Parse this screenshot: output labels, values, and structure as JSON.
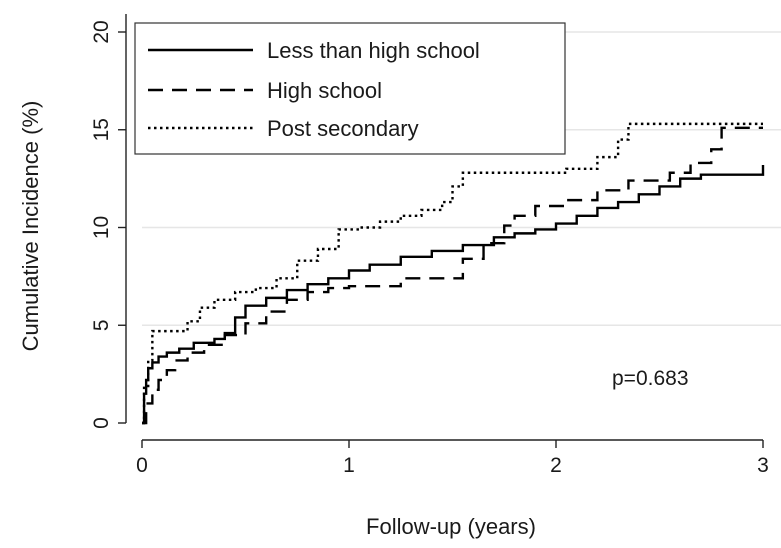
{
  "chart_data": {
    "type": "line",
    "title": "",
    "xlabel": "Follow-up (years)",
    "ylabel": "Cumulative Incidence (%)",
    "xlim": [
      0,
      3
    ],
    "ylim": [
      0,
      20
    ],
    "xticks": [
      0,
      1,
      2,
      3
    ],
    "yticks": [
      0,
      5,
      10,
      15,
      20
    ],
    "xtick_labels": [
      "0",
      "1",
      "2",
      "3"
    ],
    "ytick_labels": [
      "0",
      "5",
      "10",
      "15",
      "20"
    ],
    "grid": "horizontal",
    "legend": "top-left",
    "annotation": "p=0.683",
    "series": [
      {
        "name": "Less than high school",
        "style": "solid",
        "color": "#000000",
        "x": [
          0,
          0.01,
          0.02,
          0.03,
          0.05,
          0.08,
          0.12,
          0.18,
          0.25,
          0.35,
          0.4,
          0.45,
          0.5,
          0.6,
          0.7,
          0.8,
          0.9,
          1.0,
          1.1,
          1.25,
          1.4,
          1.55,
          1.7,
          1.8,
          1.9,
          2.0,
          2.1,
          2.2,
          2.3,
          2.4,
          2.5,
          2.6,
          2.7,
          3.0
        ],
        "y": [
          0,
          1.5,
          2.2,
          2.8,
          3.1,
          3.4,
          3.6,
          3.8,
          4.1,
          4.3,
          4.6,
          5.4,
          6.0,
          6.4,
          6.8,
          7.1,
          7.4,
          7.8,
          8.1,
          8.5,
          8.8,
          9.1,
          9.5,
          9.7,
          9.9,
          10.2,
          10.6,
          11.0,
          11.3,
          11.7,
          12.1,
          12.5,
          12.7,
          13.2
        ]
      },
      {
        "name": "High school",
        "style": "dashed",
        "color": "#000000",
        "x": [
          0,
          0.02,
          0.05,
          0.08,
          0.12,
          0.16,
          0.22,
          0.3,
          0.4,
          0.5,
          0.6,
          0.7,
          0.8,
          0.9,
          1.0,
          1.25,
          1.5,
          1.55,
          1.65,
          1.75,
          1.8,
          1.9,
          2.05,
          2.2,
          2.35,
          2.55,
          2.65,
          2.75,
          2.8,
          3.0
        ],
        "y": [
          0,
          1.0,
          1.7,
          2.2,
          2.7,
          3.2,
          3.6,
          4.0,
          4.5,
          5.1,
          5.7,
          6.3,
          6.7,
          6.9,
          7.0,
          7.4,
          7.4,
          8.4,
          9.2,
          10.1,
          10.6,
          11.1,
          11.4,
          11.9,
          12.4,
          12.8,
          13.3,
          14.0,
          15.1,
          15.1
        ]
      },
      {
        "name": "Post secondary",
        "style": "dotted",
        "color": "#000000",
        "x": [
          0,
          0.01,
          0.03,
          0.05,
          0.15,
          0.22,
          0.28,
          0.35,
          0.45,
          0.55,
          0.65,
          0.75,
          0.85,
          0.95,
          1.05,
          1.15,
          1.25,
          1.35,
          1.45,
          1.5,
          1.55,
          1.7,
          1.9,
          2.05,
          2.2,
          2.3,
          2.35,
          2.45,
          2.6,
          3.0
        ],
        "y": [
          0,
          1.8,
          3.2,
          4.7,
          4.7,
          5.2,
          5.9,
          6.3,
          6.7,
          6.9,
          7.4,
          8.3,
          8.9,
          9.9,
          10.0,
          10.3,
          10.6,
          10.9,
          11.3,
          12.1,
          12.8,
          12.8,
          12.8,
          13.0,
          13.6,
          14.5,
          15.3,
          15.3,
          15.3,
          15.3
        ]
      }
    ]
  }
}
